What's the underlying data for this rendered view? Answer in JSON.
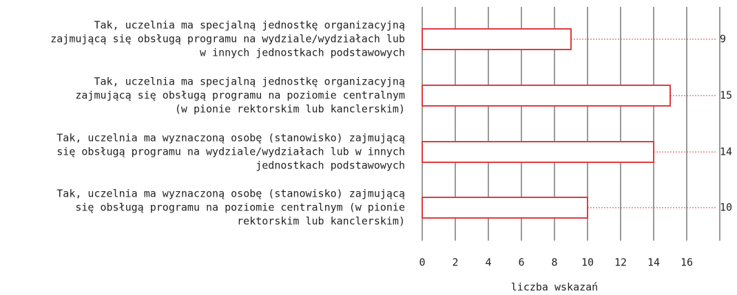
{
  "chart_data": {
    "type": "hbar",
    "categories": [
      [
        "Tak, uczelnia ma specjalną jednostkę organizacyjną",
        "zajmującą się obsługą programu na wydziale/wydziałach lub",
        "w innych jednostkach podstawowych"
      ],
      [
        "Tak, uczelnia ma specjalną jednostkę organizacyjną",
        "zajmującą się obsługą programu na poziomie centralnym",
        "(w pionie rektorskim lub kanclerskim)"
      ],
      [
        "Tak, uczelnia ma wyznaczoną osobę (stanowisko) zajmującą",
        "się obsługą programu na wydziale/wydziałach lub w innych",
        "jednostkach podstawowych"
      ],
      [
        "Tak, uczelnia ma wyznaczoną osobę (stanowisko) zajmującą",
        "się obsługą programu na poziomie centralnym (w pionie",
        "rektorskim lub kanclerskim)"
      ]
    ],
    "values": [
      9,
      15,
      14,
      10
    ],
    "color": "#e0393e",
    "xlim": [
      0,
      18
    ],
    "xticks": [
      0,
      2,
      4,
      6,
      8,
      10,
      12,
      14,
      16
    ],
    "xlabel": "liczba wskazań",
    "grid": true
  }
}
